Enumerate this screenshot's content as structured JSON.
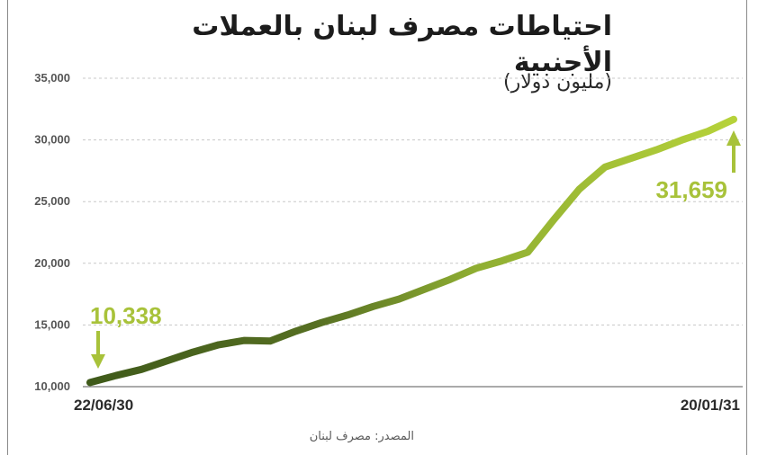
{
  "title": "احتياطات مصرف لبنان بالعملات الأجنبية",
  "subtitle": "(مليون دولار)",
  "source": "المصدر: مصرف لبنان",
  "colors": {
    "line_start": "#3f5a1a",
    "line_end": "#b6d23a",
    "callout": "#a8c23a",
    "grid": "#c8c8c8"
  },
  "chart_data": {
    "type": "line",
    "title": "احتياطات مصرف لبنان بالعملات الأجنبية",
    "ylabel": "(مليون دولار)",
    "ylim": [
      10000,
      35000
    ],
    "yticks": [
      10000,
      15000,
      20000,
      25000,
      30000,
      35000
    ],
    "ytick_labels": [
      "10,000",
      "15,000",
      "20,000",
      "25,000",
      "30,000",
      "35,000"
    ],
    "xtick_labels": [
      "22/06/30",
      "20/01/31"
    ],
    "grid": true,
    "series": [
      {
        "values": [
          10338,
          10900,
          11400,
          12100,
          12800,
          13400,
          13750,
          13700,
          14500,
          15200,
          15800,
          16500,
          17100,
          17900,
          18700,
          19600,
          20200,
          20900,
          23500,
          26000,
          27800,
          28500,
          29200,
          30000,
          30700,
          31659
        ]
      }
    ],
    "annotations": [
      {
        "label": "10,338",
        "value": 10338,
        "position": "start"
      },
      {
        "label": "31,659",
        "value": 31659,
        "position": "end"
      }
    ]
  }
}
